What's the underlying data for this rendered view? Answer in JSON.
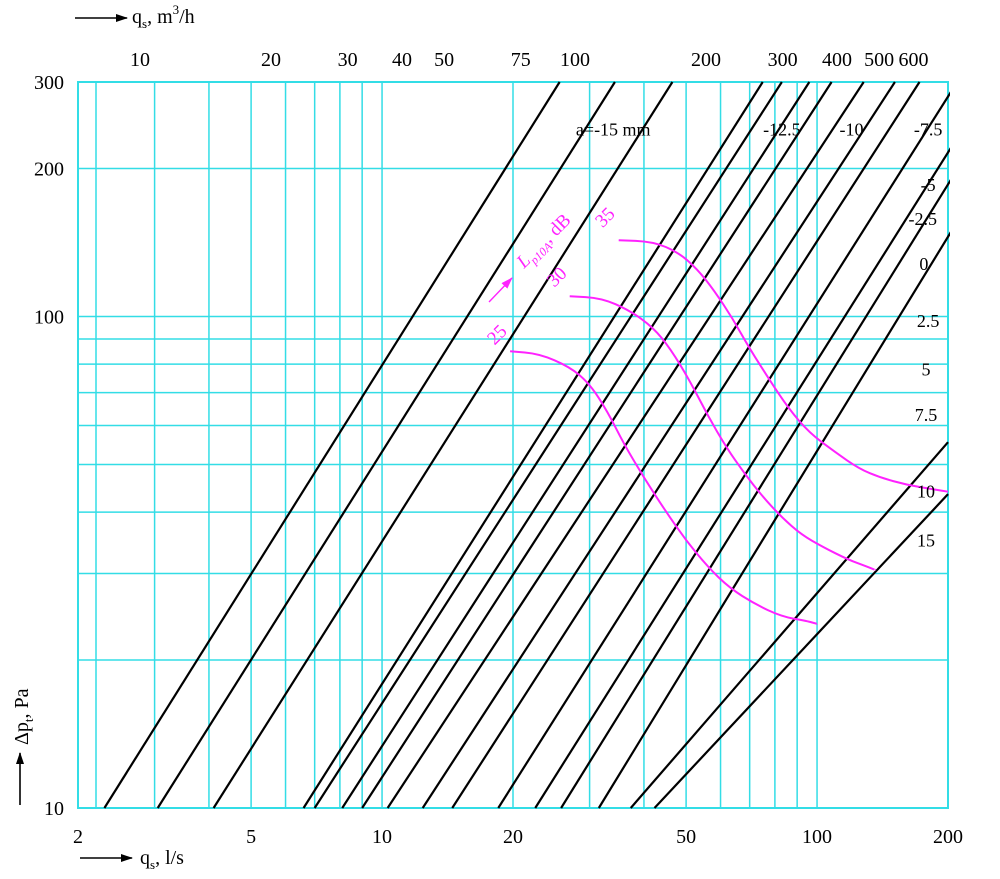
{
  "chart_data": {
    "type": "line",
    "x_scale": "log",
    "y_scale": "log",
    "xlim": [
      2,
      200
    ],
    "ylim": [
      10,
      300
    ],
    "grid": true,
    "colors": {
      "grid": "#33dde6",
      "airflow_lines": "#000000",
      "sound_lines": "#ff22ff",
      "text": "#000000"
    },
    "x_axis_bottom": {
      "label_main": "q",
      "label_sub": "s",
      "label_rest": ", l/s",
      "tick_labels": [
        {
          "value": 2,
          "text": "2"
        },
        {
          "value": 5,
          "text": "5"
        },
        {
          "value": 10,
          "text": "10"
        },
        {
          "value": 20,
          "text": "20"
        },
        {
          "value": 50,
          "text": "50"
        },
        {
          "value": 100,
          "text": "100"
        },
        {
          "value": 200,
          "text": "200"
        }
      ]
    },
    "x_axis_top": {
      "label_main": "q",
      "label_sub": "s",
      "label_rest": ", m",
      "label_sup": "3",
      "label_tail": "/h",
      "conversion_from_ls": 3.6,
      "tick_labels": [
        {
          "value": 10,
          "text": "10"
        },
        {
          "value": 20,
          "text": "20"
        },
        {
          "value": 30,
          "text": "30"
        },
        {
          "value": 40,
          "text": "40"
        },
        {
          "value": 50,
          "text": "50"
        },
        {
          "value": 75,
          "text": "75"
        },
        {
          "value": 100,
          "text": "100"
        },
        {
          "value": 200,
          "text": "200"
        },
        {
          "value": 300,
          "text": "300"
        },
        {
          "value": 400,
          "text": "400"
        },
        {
          "value": 500,
          "text": "500"
        },
        {
          "value": 600,
          "text": "600"
        }
      ]
    },
    "y_axis": {
      "label_main": "Δp",
      "label_sub": "t",
      "label_rest": ", Pa",
      "tick_labels": [
        {
          "value": 10,
          "text": "10"
        },
        {
          "value": 100,
          "text": "100"
        },
        {
          "value": 200,
          "text": "200"
        },
        {
          "value": 300,
          "text": "300"
        }
      ]
    },
    "x_gridlines_ls": [
      2.2,
      3,
      4,
      5,
      6,
      7,
      8,
      9,
      10,
      20,
      30,
      40,
      50,
      60,
      70,
      80,
      90,
      100,
      200
    ],
    "y_gridlines_pa": [
      10,
      20,
      30,
      40,
      50,
      60,
      70,
      80,
      90,
      100,
      200,
      300
    ],
    "series": [
      {
        "name": "a=-15 mm",
        "start": {
          "x": 2.3,
          "y": 10
        },
        "end": {
          "x": 25.6,
          "y": 300
        }
      },
      {
        "name": "-12.5",
        "start": {
          "x": 3.05,
          "y": 10
        },
        "end": {
          "x": 34.3,
          "y": 300
        }
      },
      {
        "name": "-10",
        "start": {
          "x": 4.1,
          "y": 10
        },
        "end": {
          "x": 46.5,
          "y": 300
        }
      },
      {
        "name": "-7.5",
        "start": {
          "x": 6.6,
          "y": 10
        },
        "end": {
          "x": 75,
          "y": 300
        }
      },
      {
        "name": "-5",
        "start": {
          "x": 7.0,
          "y": 10
        },
        "end": {
          "x": 83,
          "y": 300
        }
      },
      {
        "name": "-2.5",
        "start": {
          "x": 8.1,
          "y": 10
        },
        "end": {
          "x": 96,
          "y": 300
        }
      },
      {
        "name": "0",
        "start": {
          "x": 9.0,
          "y": 10
        },
        "end": {
          "x": 108,
          "y": 300
        }
      },
      {
        "name": "2.5",
        "start": {
          "x": 10.3,
          "y": 10
        },
        "end": {
          "x": 128,
          "y": 300
        }
      },
      {
        "name": "5",
        "start": {
          "x": 12.4,
          "y": 10
        },
        "end": {
          "x": 151,
          "y": 300
        }
      },
      {
        "name": "7.5",
        "start": {
          "x": 14.5,
          "y": 10
        },
        "end": {
          "x": 172,
          "y": 300
        }
      },
      {
        "name": "",
        "start": {
          "x": 18.5,
          "y": 10
        },
        "end": {
          "x": 210,
          "y": 300
        }
      },
      {
        "name": "",
        "start": {
          "x": 22.5,
          "y": 10
        },
        "end": {
          "x": 253,
          "y": 300
        }
      },
      {
        "name": "",
        "start": {
          "x": 25.8,
          "y": 10
        },
        "end": {
          "x": 280,
          "y": 300
        }
      },
      {
        "name": "",
        "start": {
          "x": 31.5,
          "y": 10
        },
        "end": {
          "x": 330,
          "y": 300
        }
      },
      {
        "name": "10",
        "start": {
          "x": 37.3,
          "y": 10
        },
        "end": {
          "x": 200,
          "y": 55.5
        }
      },
      {
        "name": "15",
        "start": {
          "x": 42.3,
          "y": 10
        },
        "end": {
          "x": 200,
          "y": 43.5
        }
      }
    ],
    "line_label_positions": [
      {
        "series": "a=-15 mm",
        "x": 34,
        "y": 240
      },
      {
        "series": "-12.5",
        "x": 83,
        "y": 240
      },
      {
        "series": "-10",
        "x": 120,
        "y": 240
      },
      {
        "series": "-7.5",
        "x": 180,
        "y": 240
      },
      {
        "series": "-5",
        "x": 180,
        "y": 185
      },
      {
        "series": "-2.5",
        "x": 175,
        "y": 158
      },
      {
        "series": "0",
        "x": 176,
        "y": 128
      },
      {
        "series": "2.5",
        "x": 180,
        "y": 98
      },
      {
        "series": "5",
        "x": 178,
        "y": 78
      },
      {
        "series": "7.5",
        "x": 178,
        "y": 63
      },
      {
        "series": "10",
        "x": 178,
        "y": 44
      },
      {
        "series": "15",
        "x": 178,
        "y": 35
      }
    ],
    "sound_series": [
      {
        "name": "25",
        "points": [
          [
            19.7,
            85
          ],
          [
            23,
            84
          ],
          [
            27,
            79
          ],
          [
            30,
            73
          ],
          [
            33,
            64
          ],
          [
            36,
            55
          ],
          [
            40,
            47
          ],
          [
            45,
            40
          ],
          [
            50,
            35
          ],
          [
            56,
            31
          ],
          [
            63,
            28
          ],
          [
            72,
            26
          ],
          [
            83,
            24.5
          ],
          [
            95,
            24
          ],
          [
            100,
            23.7
          ]
        ]
      },
      {
        "name": "30",
        "points": [
          [
            27,
            110
          ],
          [
            32,
            109
          ],
          [
            37,
            103
          ],
          [
            42,
            95
          ],
          [
            46,
            86
          ],
          [
            51,
            74
          ],
          [
            56,
            63
          ],
          [
            62,
            54
          ],
          [
            68,
            48
          ],
          [
            75,
            43
          ],
          [
            83,
            39
          ],
          [
            92,
            36
          ],
          [
            103,
            34
          ],
          [
            118,
            32
          ],
          [
            130,
            31
          ],
          [
            136,
            30.5
          ]
        ]
      },
      {
        "name": "35",
        "points": [
          [
            35,
            143
          ],
          [
            42,
            142
          ],
          [
            48,
            135
          ],
          [
            53,
            125
          ],
          [
            58,
            113
          ],
          [
            64,
            99
          ],
          [
            70,
            86
          ],
          [
            78,
            74
          ],
          [
            86,
            65
          ],
          [
            96,
            58
          ],
          [
            110,
            53
          ],
          [
            125,
            49
          ],
          [
            140,
            47
          ],
          [
            160,
            45.5
          ],
          [
            185,
            44.5
          ],
          [
            200,
            44
          ]
        ]
      }
    ],
    "sound_axis": {
      "label_main": "L",
      "label_sub": "p10A",
      "label_rest": ", dB"
    },
    "sound_label_positions": [
      {
        "series": "25",
        "x": 18.8,
        "y": 90
      },
      {
        "series": "30",
        "x": 25.8,
        "y": 118
      },
      {
        "series": "35",
        "x": 33.3,
        "y": 156
      }
    ]
  }
}
